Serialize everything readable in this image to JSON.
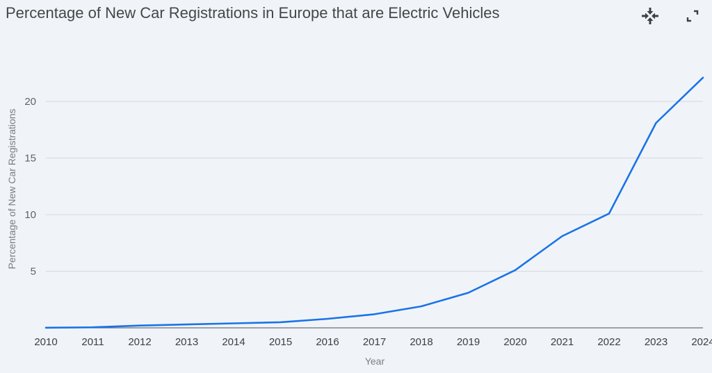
{
  "header": {
    "title": "Percentage of New Car Registrations in Europe that are Electric Vehicles",
    "collapse_icon": "collapse-arrows-icon",
    "expand_icon": "expand-corners-icon"
  },
  "chart_data": {
    "type": "line",
    "title": "Percentage of New Car Registrations in Europe that are Electric Vehicles",
    "xlabel": "Year",
    "ylabel": "Percentage of New Car Registrations",
    "x": [
      2010,
      2011,
      2012,
      2013,
      2014,
      2015,
      2016,
      2017,
      2018,
      2019,
      2020,
      2021,
      2022,
      2023,
      2024
    ],
    "series": [
      {
        "values": [
          0.01,
          0.05,
          0.2,
          0.3,
          0.4,
          0.5,
          0.8,
          1.2,
          1.9,
          3.1,
          5.1,
          8.1,
          10.1,
          18.1,
          22.1
        ],
        "color": "#1a73e8"
      }
    ],
    "xlim": [
      2010,
      2024
    ],
    "ylim": [
      0,
      22
    ],
    "yticks": [
      5,
      10,
      15,
      20
    ],
    "grid": true,
    "legend": "none"
  }
}
